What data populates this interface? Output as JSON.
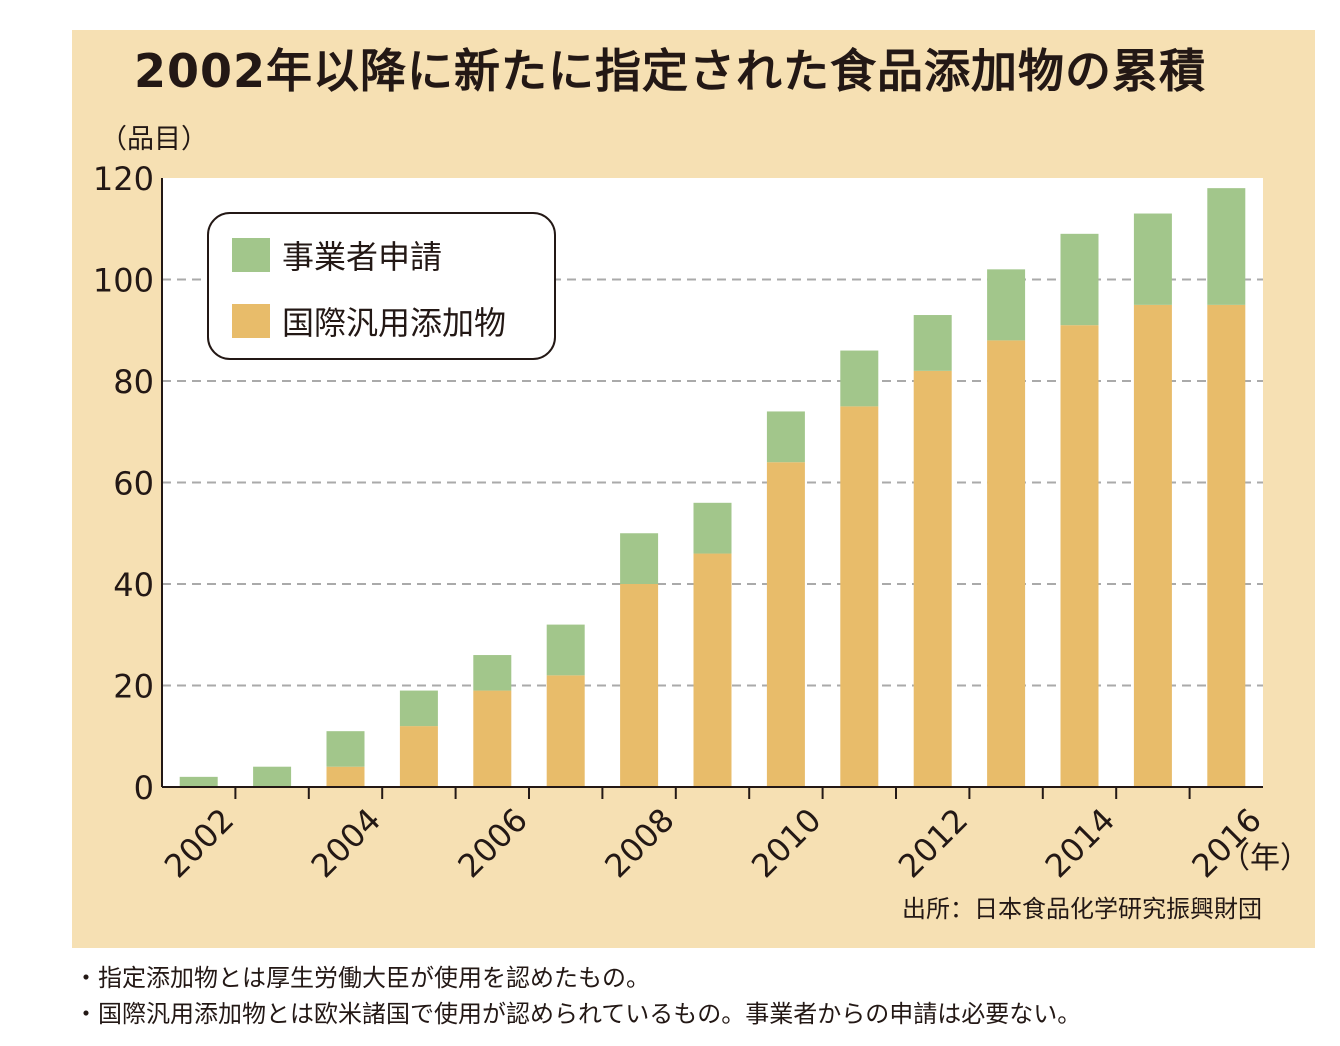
{
  "title": "2002年以降に新たに指定された食品添加物の累積",
  "y_unit": "（品目）",
  "x_unit": "（年）",
  "source": "出所：日本食品化学研究振興財団",
  "notes": [
    "・指定添加物とは厚生労働大臣が使用を認めたもの。",
    "・国際汎用添加物とは欧米諸国で使用が認められているもの。事業者からの申請は必要ない。"
  ],
  "colors": {
    "background": "#f6e0b3",
    "plot": "#ffffff",
    "applicant": "#a2c68b",
    "international": "#e8bc6a",
    "grid": "#aaaaaa"
  },
  "chart_data": {
    "type": "bar",
    "stacked": true,
    "x": [
      "2002",
      "2003",
      "2004",
      "2005",
      "2006",
      "2007",
      "2008",
      "2009",
      "2010",
      "2011",
      "2012",
      "2013",
      "2014",
      "2015",
      "2016"
    ],
    "x_tick_labels": [
      "2002",
      "2004",
      "2006",
      "2008",
      "2010",
      "2012",
      "2014",
      "2016"
    ],
    "series": [
      {
        "name": "国際汎用添加物",
        "color": "#e8bc6a",
        "values": [
          0,
          0,
          4,
          12,
          19,
          22,
          40,
          46,
          64,
          75,
          82,
          88,
          91,
          95,
          95
        ]
      },
      {
        "name": "事業者申請",
        "color": "#a2c68b",
        "values": [
          2,
          4,
          7,
          7,
          7,
          10,
          10,
          10,
          10,
          11,
          11,
          14,
          18,
          18,
          23
        ]
      }
    ],
    "ylim": [
      0,
      120
    ],
    "yticks": [
      0,
      20,
      40,
      60,
      80,
      100,
      120
    ],
    "grid": true,
    "legend": "top-left",
    "legend_order": [
      "事業者申請",
      "国際汎用添加物"
    ]
  }
}
